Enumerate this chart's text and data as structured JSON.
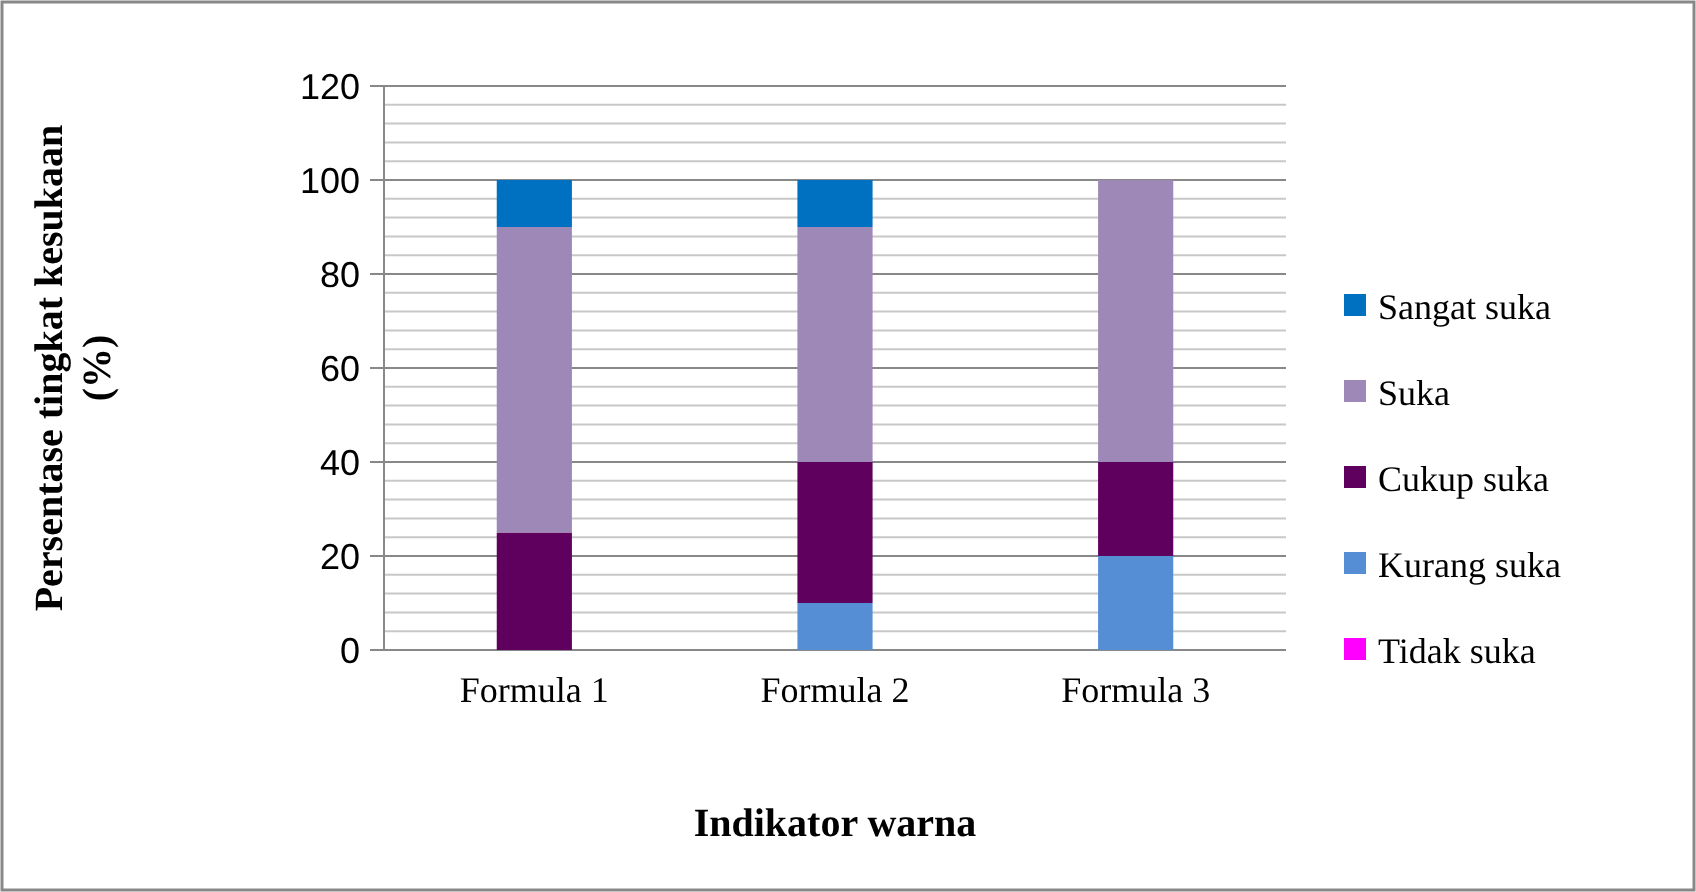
{
  "chart_data": {
    "type": "bar",
    "stacked": true,
    "xlabel": "Indikator warna",
    "ylabel": "Persentase tingkat kesukaan (%)",
    "categories": [
      "Formula 1",
      "Formula 2",
      "Formula 3"
    ],
    "series": [
      {
        "name": "Tidak suka",
        "color": "#ff00ff",
        "values": [
          0,
          0,
          0
        ]
      },
      {
        "name": "Kurang suka",
        "color": "#558ed5",
        "values": [
          0,
          10,
          20
        ]
      },
      {
        "name": "Cukup suka",
        "color": "#5f005f",
        "values": [
          25,
          30,
          20
        ]
      },
      {
        "name": "Suka",
        "color": "#9e88b8",
        "values": [
          65,
          50,
          60
        ]
      },
      {
        "name": "Sangat suka",
        "color": "#0070c0",
        "values": [
          10,
          10,
          0
        ]
      }
    ],
    "ylim": [
      0,
      120
    ],
    "yticks": [
      0,
      {
        "value": 4,
        "label": null
      },
      {
        "value": 8,
        "label": null
      },
      {
        "value": 12,
        "label": null
      },
      {
        "value": 16,
        "label": null
      },
      20,
      {
        "value": 24,
        "label": null
      },
      {
        "value": 28,
        "label": null
      },
      {
        "value": 32,
        "label": null
      },
      {
        "value": 36,
        "label": null
      },
      40,
      {
        "value": 44,
        "label": null
      },
      {
        "value": 48,
        "label": null
      },
      {
        "value": 52,
        "label": null
      },
      {
        "value": 56,
        "label": null
      },
      60,
      {
        "value": 64,
        "label": null
      },
      {
        "value": 68,
        "label": null
      },
      {
        "value": 72,
        "label": null
      },
      {
        "value": 76,
        "label": null
      },
      80,
      {
        "value": 84,
        "label": null
      },
      {
        "value": 88,
        "label": null
      },
      {
        "value": 92,
        "label": null
      },
      {
        "value": 96,
        "label": null
      },
      100,
      {
        "value": 104,
        "label": null
      },
      {
        "value": 108,
        "label": null
      },
      {
        "value": 112,
        "label": null
      },
      {
        "value": 116,
        "label": null
      },
      120
    ],
    "grid": true,
    "legend": "right"
  }
}
